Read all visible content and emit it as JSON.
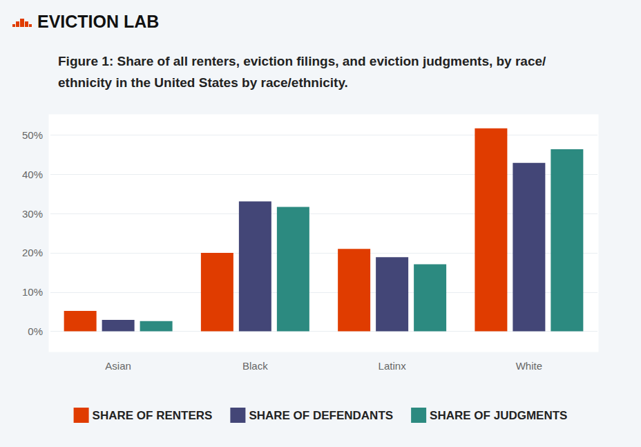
{
  "chart_data": {
    "type": "bar",
    "title": "Figure 1: Share of all renters, eviction filings, and eviction judgments, by race/ethnicity in the United States by race/ethnicity.",
    "annotations": [
      "EVICTION LAB"
    ],
    "categories": [
      "Asian",
      "Black",
      "Latinx",
      "White"
    ],
    "series": [
      {
        "name": "SHARE OF RENTERS",
        "color": "#e03c00",
        "values": [
          5.2,
          20.0,
          21.0,
          51.7
        ]
      },
      {
        "name": "SHARE OF DEFENDANTS",
        "color": "#434677",
        "values": [
          2.9,
          33.1,
          18.9,
          42.9
        ]
      },
      {
        "name": "SHARE OF JUDGMENTS",
        "color": "#2c8a80",
        "values": [
          2.6,
          31.7,
          17.1,
          46.4
        ]
      }
    ],
    "ylim": [
      -5,
      55
    ],
    "yticks": [
      {
        "value": 0,
        "label": "0%"
      },
      {
        "value": 10,
        "label": "10%"
      },
      {
        "value": 20,
        "label": "20%"
      },
      {
        "value": 30,
        "label": "30%"
      },
      {
        "value": 40,
        "label": "40%"
      },
      {
        "value": 50,
        "label": "50%"
      }
    ],
    "grid": true,
    "legend": "bottom"
  }
}
